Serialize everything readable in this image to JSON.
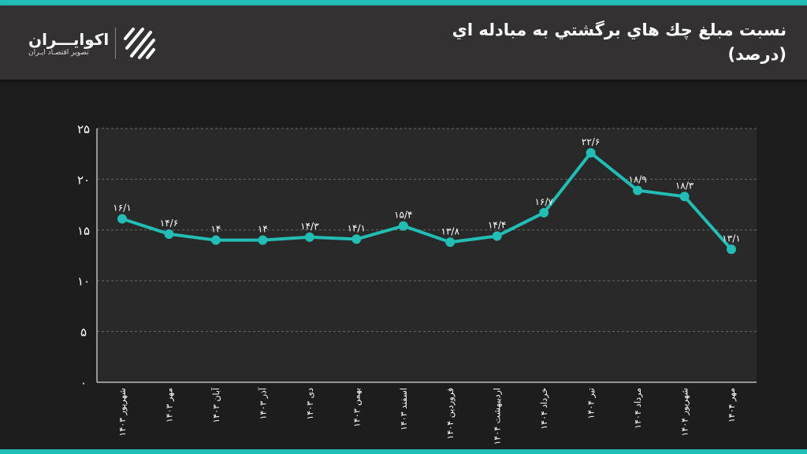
{
  "header": {
    "title_line1": "نسبت مبلغ چك هاي برگشتي به مبادله اي",
    "title_line2": "(درصد)",
    "logo_name": "اکوایـــران",
    "logo_subtitle": "تصویر اقتصـاد ایـران"
  },
  "colors": {
    "accent": "#22bdb5",
    "header_bg": "#333132",
    "background": "#1e1d1d",
    "plot_bg": "#2a2929"
  },
  "chart_data": {
    "type": "line",
    "title": "نسبت مبلغ چك هاي برگشتي به مبادله اي (درصد)",
    "categories": [
      "شهریور ۱۴۰۳",
      "مهر ۱۴۰۳",
      "آبان ۱۴۰۳",
      "آذر ۱۴۰۳",
      "دی ۱۴۰۳",
      "بهمن ۱۴۰۳",
      "اسفند ۱۴۰۳",
      "فروردین ۱۴۰۴",
      "اردیبهشت ۱۴۰۴",
      "خرداد ۱۴۰۴",
      "تیر ۱۴۰۴",
      "مرداد ۱۴۰۴",
      "شهریور ۱۴۰۴",
      "مهر ۱۴۰۴"
    ],
    "values": [
      16.1,
      14.6,
      14,
      14,
      14.3,
      14.1,
      15.4,
      13.8,
      14.4,
      16.7,
      22.6,
      18.9,
      18.3,
      13.1
    ],
    "data_labels": [
      "۱۶/۱",
      "۱۴/۶",
      "۱۴",
      "۱۴",
      "۱۴/۳",
      "۱۴/۱",
      "۱۵/۴",
      "۱۳/۸",
      "۱۴/۴",
      "۱۶/۷",
      "۲۲/۶",
      "۱۸/۹",
      "۱۸/۳",
      "۱۳/۱"
    ],
    "ylim": [
      0,
      25
    ],
    "yticks": [
      0,
      5,
      10,
      15,
      20,
      25
    ],
    "ytick_labels": [
      "۰",
      "۵",
      "۱۰",
      "۱۵",
      "۲۰",
      "۲۵"
    ],
    "grid": true,
    "legend": "none"
  }
}
